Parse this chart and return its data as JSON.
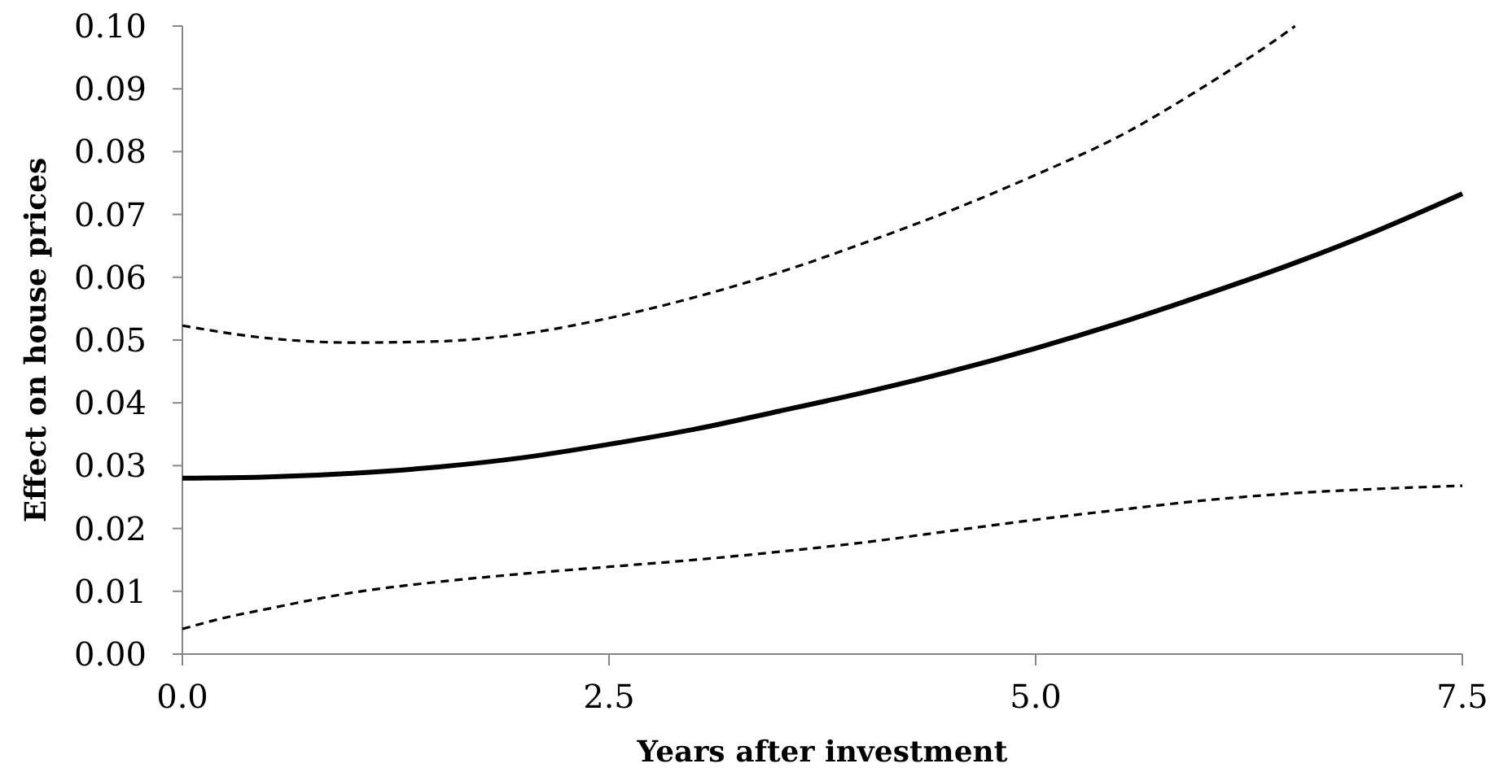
{
  "chart_data": {
    "type": "line",
    "xlabel": "Years after investment",
    "ylabel": "Effect on house prices",
    "xlim": [
      0,
      7.5
    ],
    "ylim": [
      0,
      0.1
    ],
    "xticks": [
      {
        "value": 0,
        "label": "0.0"
      },
      2.5,
      {
        "value": 5,
        "label": "5.0"
      },
      7.5
    ],
    "yticks": [
      {
        "value": 0,
        "label": "0.00"
      },
      {
        "value": 0.01,
        "label": "0.01"
      },
      {
        "value": 0.02,
        "label": "0.02"
      },
      {
        "value": 0.03,
        "label": "0.03"
      },
      {
        "value": 0.04,
        "label": "0.04"
      },
      {
        "value": 0.05,
        "label": "0.05"
      },
      {
        "value": 0.06,
        "label": "0.06"
      },
      {
        "value": 0.07,
        "label": "0.07"
      },
      {
        "value": 0.08,
        "label": "0.08"
      },
      {
        "value": 0.09,
        "label": "0.09"
      },
      {
        "value": 0.1,
        "label": "0.10"
      }
    ],
    "series": [
      {
        "color": "#000000",
        "line_style": "dashed",
        "x": [
          0,
          0.5,
          1,
          1.5,
          2,
          2.5,
          3,
          3.5,
          4,
          4.5,
          5,
          5.5,
          6,
          6.5,
          6.52
        ],
        "values": [
          0.0523,
          0.0503,
          0.0496,
          0.0498,
          0.051,
          0.0535,
          0.0568,
          0.0608,
          0.0655,
          0.0706,
          0.0763,
          0.0826,
          0.0906,
          0.0996,
          0.1
        ]
      },
      {
        "color": "#000000",
        "line_style": "solid",
        "x": [
          0,
          0.5,
          1,
          1.5,
          2,
          2.5,
          3,
          3.5,
          4,
          4.5,
          5,
          5.5,
          6,
          6.5,
          7,
          7.5
        ],
        "values": [
          0.028,
          0.0282,
          0.0288,
          0.0298,
          0.0313,
          0.0334,
          0.0358,
          0.0387,
          0.0417,
          0.045,
          0.0487,
          0.0528,
          0.0573,
          0.0621,
          0.0674,
          0.0733
        ]
      },
      {
        "color": "#000000",
        "line_style": "dashed",
        "x": [
          0,
          0.25,
          0.5,
          1,
          1.5,
          2,
          2.5,
          3,
          3.5,
          4,
          4.5,
          5,
          5.5,
          6,
          6.5,
          7,
          7.5
        ],
        "values": [
          0.004,
          0.0058,
          0.0072,
          0.0098,
          0.0115,
          0.0128,
          0.0139,
          0.015,
          0.0163,
          0.0178,
          0.0196,
          0.0214,
          0.023,
          0.0245,
          0.0256,
          0.0263,
          0.0268
        ]
      }
    ]
  }
}
